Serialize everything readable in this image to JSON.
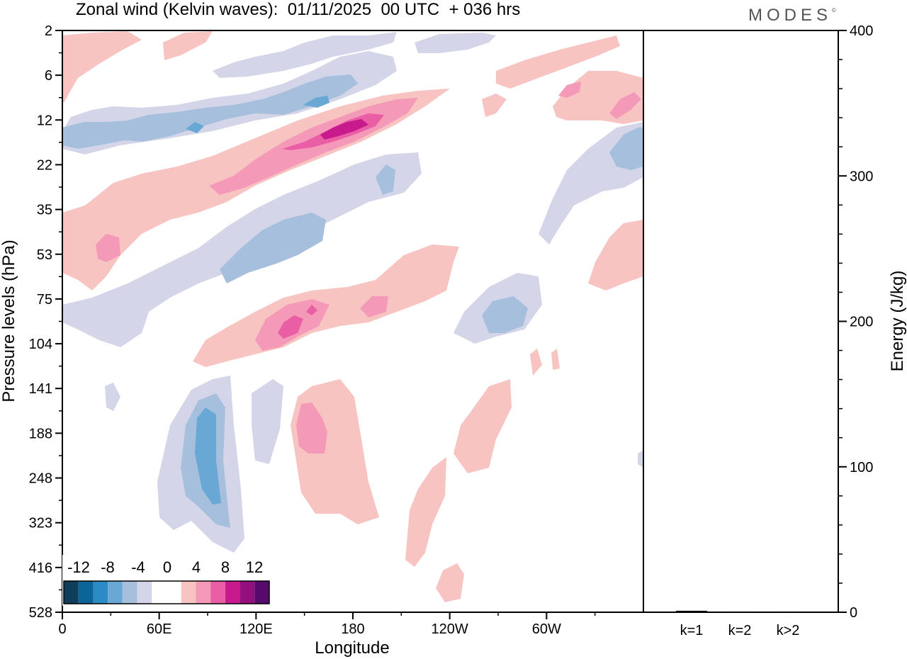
{
  "header": {
    "title": "Zonal wind (Kelvin waves):  01/11/2025  00 UTC  + 036 hrs",
    "brand": "MODES",
    "brand_mark": "©"
  },
  "chart_data": [
    {
      "type": "heatmap",
      "title": "Zonal wind (Kelvin waves):  01/11/2025  00 UTC  + 036 hrs",
      "xlabel": "Longitude",
      "ylabel": "Pressure levels (hPa)",
      "x_ticks": [
        "0",
        "60E",
        "120E",
        "180",
        "120W",
        "60W"
      ],
      "x_tick_degrees": [
        0,
        60,
        120,
        180,
        240,
        300
      ],
      "xlim_degrees": [
        0,
        360
      ],
      "y_ticks": [
        "2",
        "6",
        "12",
        "22",
        "35",
        "53",
        "75",
        "104",
        "141",
        "188",
        "248",
        "323",
        "416",
        "528"
      ],
      "y_scale": "categorical pressure levels, top to bottom",
      "colorbar": {
        "labels": [
          "-12",
          "-8",
          "-4",
          "0",
          "4",
          "8",
          "12"
        ],
        "levels": [
          -14,
          -12,
          -10,
          -8,
          -6,
          -4,
          -2,
          2,
          4,
          6,
          8,
          10,
          12,
          14
        ],
        "colors": [
          "#0f3e5b",
          "#0d6597",
          "#2c8ac4",
          "#69a8d4",
          "#a5bfdd",
          "#d4d5e8",
          "#ffffff",
          "#ffffff",
          "#f8c4c2",
          "#f49ab8",
          "#ea5ea6",
          "#c81a8d",
          "#930f7e",
          "#560a6e"
        ]
      },
      "features": [
        {
          "sign": "positive",
          "peak": 12,
          "lon_center": 170,
          "level": "12",
          "orientation": "descending eastward"
        },
        {
          "sign": "negative",
          "peak": -6,
          "lon_center": 40,
          "level": "12"
        },
        {
          "sign": "negative",
          "peak": -6,
          "lon_center": 150,
          "level": "6"
        },
        {
          "sign": "positive",
          "peak": 6,
          "lon_center": 90,
          "level": "22"
        },
        {
          "sign": "negative",
          "peak": -6,
          "lon_center": 120,
          "level": "53"
        },
        {
          "sign": "positive",
          "peak": 8,
          "lon_center": 120,
          "level": "104"
        },
        {
          "sign": "negative",
          "peak": -8,
          "lon_center": 85,
          "level": "188"
        },
        {
          "sign": "positive",
          "peak": 6,
          "lon_center": 140,
          "level": "188"
        },
        {
          "sign": "negative",
          "peak": -6,
          "lon_center": 270,
          "level": "104"
        },
        {
          "sign": "positive",
          "peak": 4,
          "lon_center": 255,
          "level": "188"
        },
        {
          "sign": "negative",
          "peak": -4,
          "lon_center": 340,
          "level": "22"
        },
        {
          "sign": "positive",
          "peak": 6,
          "lon_center": 340,
          "level": "12"
        }
      ]
    },
    {
      "type": "bar",
      "ylabel": "Energy (J/kg)",
      "categories": [
        "k=1",
        "k=2",
        "k>2"
      ],
      "values": [
        1,
        0.5,
        0.5
      ],
      "ylim": [
        0,
        400
      ],
      "y_ticks": [
        "0",
        "100",
        "200",
        "300",
        "400"
      ]
    }
  ]
}
